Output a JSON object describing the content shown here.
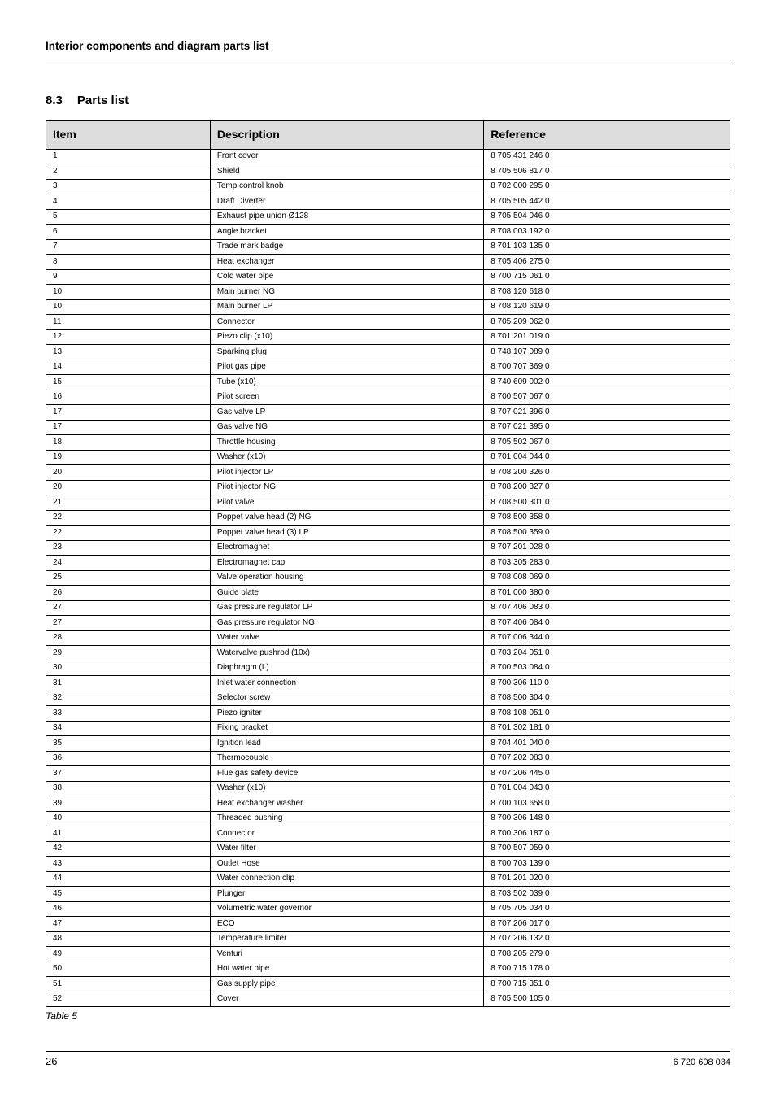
{
  "header": {
    "title": "Interior components and diagram parts list"
  },
  "section": {
    "number": "8.3",
    "title": "Parts list"
  },
  "table": {
    "caption": "Table 5",
    "columns": [
      "Item",
      "Description",
      "Reference"
    ],
    "rows": [
      [
        "1",
        "Front cover",
        "8 705 431 246 0"
      ],
      [
        "2",
        "Shield",
        "8 705 506 817 0"
      ],
      [
        "3",
        "Temp control knob",
        "8 702 000 295 0"
      ],
      [
        "4",
        "Draft Diverter",
        "8 705 505 442 0"
      ],
      [
        "5",
        "Exhaust pipe union Ø128",
        "8 705 504 046 0"
      ],
      [
        "6",
        "Angle bracket",
        "8 708 003 192 0"
      ],
      [
        "7",
        "Trade mark badge",
        "8 701 103 135 0"
      ],
      [
        "8",
        "Heat exchanger",
        "8 705 406 275 0"
      ],
      [
        "9",
        "Cold water pipe",
        "8 700 715 061 0"
      ],
      [
        "10",
        "Main burner NG",
        "8 708 120 618 0"
      ],
      [
        "10",
        "Main burner LP",
        "8 708 120 619 0"
      ],
      [
        "11",
        "Connector",
        "8 705 209 062 0"
      ],
      [
        "12",
        "Piezo clip (x10)",
        "8 701 201 019 0"
      ],
      [
        "13",
        "Sparking plug",
        "8 748 107 089 0"
      ],
      [
        "14",
        "Pilot gas pipe",
        "8 700 707 369 0"
      ],
      [
        "15",
        "Tube (x10)",
        "8 740 609 002 0"
      ],
      [
        "16",
        "Pilot screen",
        "8 700 507 067 0"
      ],
      [
        "17",
        "Gas valve LP",
        "8 707 021 396 0"
      ],
      [
        "17",
        "Gas valve NG",
        "8 707 021 395 0"
      ],
      [
        "18",
        "Throttle housing",
        "8 705 502 067 0"
      ],
      [
        "19",
        "Washer (x10)",
        "8 701 004 044 0"
      ],
      [
        "20",
        "Pilot injector LP",
        "8 708 200 326 0"
      ],
      [
        "20",
        "Pilot injector NG",
        "8 708 200 327 0"
      ],
      [
        "21",
        "Pilot valve",
        "8 708 500 301 0"
      ],
      [
        "22",
        "Poppet valve head (2) NG",
        "8 708 500 358 0"
      ],
      [
        "22",
        "Poppet valve head (3) LP",
        "8 708 500 359 0"
      ],
      [
        "23",
        "Electromagnet",
        "8 707 201 028 0"
      ],
      [
        "24",
        "Electromagnet cap",
        "8 703 305 283 0"
      ],
      [
        "25",
        "Valve operation housing",
        "8 708 008 069 0"
      ],
      [
        "26",
        "Guide plate",
        "8 701 000 380 0"
      ],
      [
        "27",
        "Gas pressure regulator LP",
        "8 707 406 083 0"
      ],
      [
        "27",
        "Gas pressure regulator NG",
        "8 707 406 084 0"
      ],
      [
        "28",
        "Water valve",
        "8 707 006 344 0"
      ],
      [
        "29",
        "Watervalve pushrod (10x)",
        "8 703 204 051 0"
      ],
      [
        "30",
        "Diaphragm (L)",
        "8 700 503 084 0"
      ],
      [
        "31",
        "Inlet water connection",
        "8 700 306 110 0"
      ],
      [
        "32",
        "Selector screw",
        "8 708 500 304 0"
      ],
      [
        "33",
        "Piezo igniter",
        "8 708 108 051 0"
      ],
      [
        "34",
        "Fixing bracket",
        "8 701 302 181 0"
      ],
      [
        "35",
        "Ignition lead",
        "8 704 401 040 0"
      ],
      [
        "36",
        "Thermocouple",
        "8 707 202 083 0"
      ],
      [
        "37",
        "Flue gas safety device",
        "8 707 206 445 0"
      ],
      [
        "38",
        "Washer (x10)",
        "8 701 004 043 0"
      ],
      [
        "39",
        "Heat exchanger washer",
        "8 700 103 658 0"
      ],
      [
        "40",
        "Threaded bushing",
        "8 700 306 148 0"
      ],
      [
        "41",
        "Connector",
        "8 700 306 187 0"
      ],
      [
        "42",
        "Water filter",
        "8 700 507 059 0"
      ],
      [
        "43",
        "Outlet Hose",
        "8 700 703 139 0"
      ],
      [
        "44",
        "Water connection clip",
        "8 701 201 020 0"
      ],
      [
        "45",
        "Plunger",
        "8 703 502 039 0"
      ],
      [
        "46",
        "Volumetric water governor",
        "8 705 705 034 0"
      ],
      [
        "47",
        "ECO",
        "8 707 206 017 0"
      ],
      [
        "48",
        "Temperature limiter",
        "8 707 206 132 0"
      ],
      [
        "49",
        "Venturi",
        "8 708 205 279 0"
      ],
      [
        "50",
        "Hot water pipe",
        "8 700 715 178 0"
      ],
      [
        "51",
        "Gas supply pipe",
        "8 700 715 351 0"
      ],
      [
        "52",
        "Cover",
        "8 705 500 105 0"
      ]
    ]
  },
  "footer": {
    "page": "26",
    "doc_ref": "6 720 608 034"
  }
}
